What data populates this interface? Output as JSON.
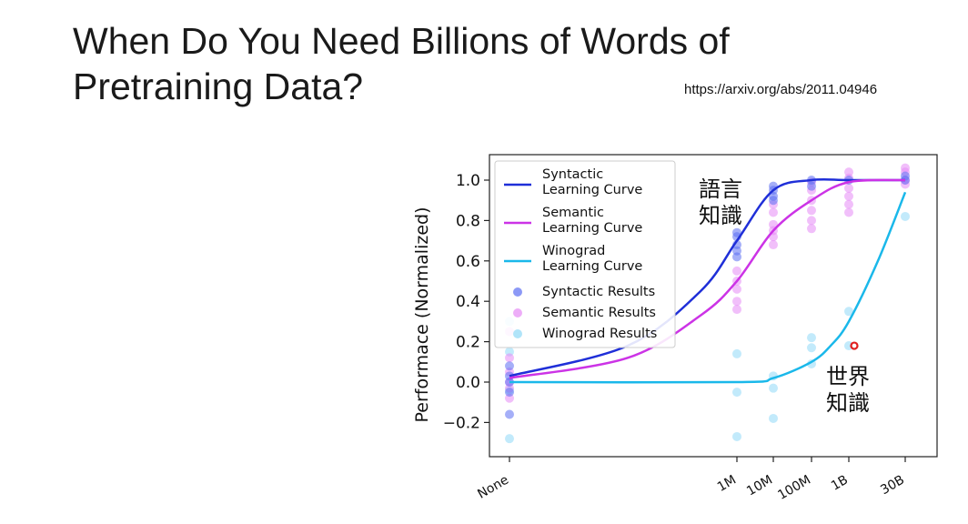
{
  "slide": {
    "title_lines": [
      "When Do You Need Billions of Words of",
      "Pretraining Data?"
    ],
    "reference_url": "https://arxiv.org/abs/2011.04946"
  },
  "colors": {
    "syntactic": "#1f2fd8",
    "semantic": "#cc33e6",
    "winograd": "#1ab8ea",
    "syntactic_points": "#5b6ef2",
    "semantic_points": "#e58af5",
    "winograd_points": "#8fd9f7",
    "marker": "#e02020"
  },
  "chart_data": {
    "type": "scatter",
    "title": "",
    "xlabel": "",
    "ylabel": "Performace (Normalized)",
    "x_categories": [
      "None",
      "1M",
      "10M",
      "100M",
      "1B",
      "30B"
    ],
    "y_ticks": [
      "1.0",
      "0.8",
      "0.6",
      "0.4",
      "0.2",
      "0.0",
      "−0.2"
    ],
    "y_tick_values": [
      1.0,
      0.8,
      0.6,
      0.4,
      0.2,
      0.0,
      -0.2
    ],
    "ylim": [
      -0.3,
      1.1
    ],
    "grid": false,
    "legend_position": "top-left",
    "legend": [
      {
        "label": "Syntactic\nLearning Curve",
        "kind": "line",
        "color_key": "syntactic"
      },
      {
        "label": "Semantic\nLearning Curve",
        "kind": "line",
        "color_key": "semantic"
      },
      {
        "label": "Winograd\nLearning Curve",
        "kind": "line",
        "color_key": "winograd"
      },
      {
        "label": "Syntactic Results",
        "kind": "dot",
        "color_key": "syntactic_points"
      },
      {
        "label": "Semantic Results",
        "kind": "dot",
        "color_key": "semantic_points"
      },
      {
        "label": "Winograd Results",
        "kind": "dot",
        "color_key": "winograd_points"
      }
    ],
    "curves": [
      {
        "series": "syntactic",
        "points": [
          [
            "None",
            0.03
          ],
          [
            "1M",
            0.7
          ],
          [
            "10M",
            0.95
          ],
          [
            "100M",
            1.0
          ],
          [
            "1B",
            1.0
          ],
          [
            "30B",
            1.0
          ]
        ]
      },
      {
        "series": "semantic",
        "points": [
          [
            "None",
            0.02
          ],
          [
            "1M",
            0.5
          ],
          [
            "10M",
            0.75
          ],
          [
            "100M",
            0.9
          ],
          [
            "1B",
            0.99
          ],
          [
            "30B",
            1.0
          ]
        ]
      },
      {
        "series": "winograd",
        "points": [
          [
            "None",
            0.0
          ],
          [
            "1M",
            0.0
          ],
          [
            "10M",
            0.02
          ],
          [
            "100M",
            0.1
          ],
          [
            "1B",
            0.3
          ],
          [
            "30B",
            0.94
          ]
        ]
      }
    ],
    "results": {
      "syntactic": [
        [
          "None",
          -0.16
        ],
        [
          "None",
          -0.05
        ],
        [
          "None",
          0.0
        ],
        [
          "None",
          0.03
        ],
        [
          "None",
          0.08
        ],
        [
          "1M",
          0.72
        ],
        [
          "1M",
          0.68
        ],
        [
          "1M",
          0.65
        ],
        [
          "1M",
          0.74
        ],
        [
          "1M",
          0.62
        ],
        [
          "10M",
          0.97
        ],
        [
          "10M",
          0.95
        ],
        [
          "10M",
          0.92
        ],
        [
          "10M",
          0.9
        ],
        [
          "100M",
          1.0
        ],
        [
          "100M",
          0.97
        ],
        [
          "1B",
          1.0
        ],
        [
          "30B",
          1.0
        ],
        [
          "30B",
          1.02
        ]
      ],
      "semantic": [
        [
          "None",
          0.12
        ],
        [
          "None",
          0.05
        ],
        [
          "None",
          0.0
        ],
        [
          "None",
          -0.03
        ],
        [
          "None",
          -0.08
        ],
        [
          "None",
          0.25
        ],
        [
          "1M",
          0.55
        ],
        [
          "1M",
          0.5
        ],
        [
          "1M",
          0.46
        ],
        [
          "1M",
          0.4
        ],
        [
          "1M",
          0.36
        ],
        [
          "10M",
          0.88
        ],
        [
          "10M",
          0.84
        ],
        [
          "10M",
          0.78
        ],
        [
          "10M",
          0.72
        ],
        [
          "10M",
          0.68
        ],
        [
          "10M",
          0.75
        ],
        [
          "100M",
          0.99
        ],
        [
          "100M",
          0.95
        ],
        [
          "100M",
          0.9
        ],
        [
          "100M",
          0.85
        ],
        [
          "100M",
          0.8
        ],
        [
          "100M",
          0.76
        ],
        [
          "1B",
          1.04
        ],
        [
          "1B",
          1.01
        ],
        [
          "1B",
          0.96
        ],
        [
          "1B",
          0.92
        ],
        [
          "1B",
          0.88
        ],
        [
          "1B",
          0.84
        ],
        [
          "30B",
          1.06
        ],
        [
          "30B",
          1.04
        ],
        [
          "30B",
          1.0
        ],
        [
          "30B",
          0.98
        ]
      ],
      "winograd": [
        [
          "None",
          -0.28
        ],
        [
          "None",
          0.3
        ],
        [
          "None",
          0.15
        ],
        [
          "None",
          -0.04
        ],
        [
          "1M",
          0.14
        ],
        [
          "1M",
          -0.05
        ],
        [
          "1M",
          -0.27
        ],
        [
          "10M",
          0.03
        ],
        [
          "10M",
          -0.03
        ],
        [
          "10M",
          -0.18
        ],
        [
          "100M",
          0.22
        ],
        [
          "100M",
          0.17
        ],
        [
          "100M",
          0.09
        ],
        [
          "1B",
          0.35
        ],
        [
          "1B",
          0.18
        ],
        [
          "30B",
          0.82
        ]
      ]
    },
    "annotations": [
      {
        "text": "語言\n知識",
        "x": "10M",
        "y": 1.0
      },
      {
        "text": "世界\n知識",
        "x": "1B",
        "y": 0.03
      }
    ],
    "highlight_marker": {
      "x": "1B",
      "y": 0.18
    }
  }
}
